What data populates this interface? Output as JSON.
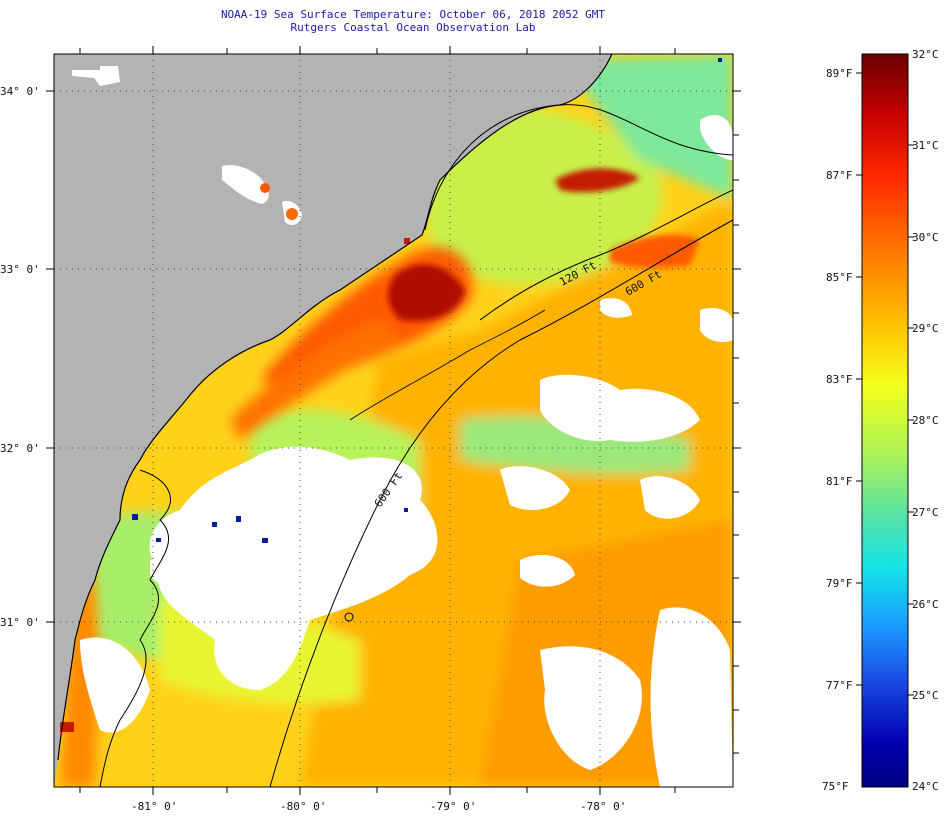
{
  "title": {
    "line1": "NOAA-19 Sea Surface Temperature:  October 06, 2018 2052 GMT",
    "line2": "Rutgers Coastal Ocean Observation Lab"
  },
  "map": {
    "lat_labels": [
      "34° 0'",
      "33° 0'",
      "32° 0'",
      "31° 0'"
    ],
    "lon_labels": [
      "-81° 0'",
      "-80° 0'",
      "-79° 0'",
      "-78° 0'"
    ],
    "contour_labels": [
      "120 Ft",
      "600 Ft",
      "600 Ft"
    ],
    "colors": {
      "land": "#b3b3b3",
      "cloud": "#ffffff",
      "gridline": "#444444"
    }
  },
  "colorbar": {
    "celsius_labels": [
      "32°C",
      "31°C",
      "30°C",
      "29°C",
      "28°C",
      "27°C",
      "26°C",
      "25°C",
      "24°C"
    ],
    "fahrenheit_labels": [
      "89°F",
      "87°F",
      "85°F",
      "83°F",
      "81°F",
      "79°F",
      "77°F",
      "75°F"
    ],
    "stops": [
      "#6b0000",
      "#c40000",
      "#ff2a00",
      "#ff7a00",
      "#ffc200",
      "#f5ff1a",
      "#a8f25a",
      "#4de0b0",
      "#14e6e6",
      "#1a9cff",
      "#1a46e0",
      "#0000b0",
      "#000080"
    ]
  }
}
